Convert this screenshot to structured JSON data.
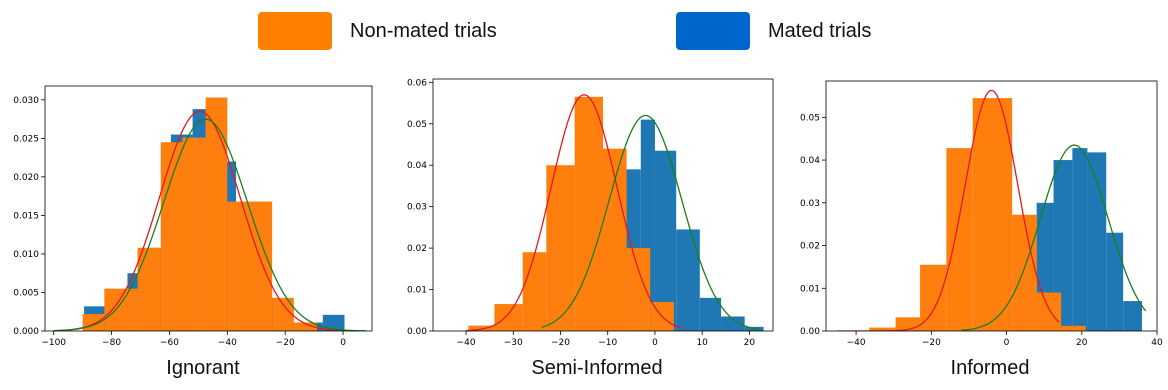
{
  "legend": {
    "nonmated_label": "Non-mated trials",
    "mated_label": "Mated trials",
    "nonmated_color": "#ff7f0e",
    "mated_color": "#1f77b4",
    "nonmated_swatch_color": "#ff8000",
    "mated_swatch_color": "#0066cc"
  },
  "fit_colors": {
    "nonmated": "#e31a1c",
    "mated": "#1a7f1a"
  },
  "chart_data": [
    {
      "type": "bar",
      "title": "Ignorant",
      "xlim": [
        -103,
        10
      ],
      "ylim": [
        0,
        0.0318
      ],
      "xticks": [
        -100,
        -80,
        -60,
        -40,
        -20,
        0
      ],
      "yticks": [
        0.0,
        0.005,
        0.01,
        0.015,
        0.02,
        0.025,
        0.03
      ],
      "ytick_labels": [
        "0.000",
        "0.005",
        "0.010",
        "0.015",
        "0.020",
        "0.025",
        "0.030"
      ],
      "series": [
        {
          "name": "Mated trials",
          "bins": [
            {
              "x0": -89.5,
              "x1": -82.0,
              "y": 0.0032
            },
            {
              "x0": -82.0,
              "x1": -74.5,
              "y": 0.0054
            },
            {
              "x0": -74.5,
              "x1": -67.0,
              "y": 0.0075
            },
            {
              "x0": -67.0,
              "x1": -59.5,
              "y": 0.0108
            },
            {
              "x0": -59.5,
              "x1": -52.0,
              "y": 0.0255
            },
            {
              "x0": -52.0,
              "x1": -44.5,
              "y": 0.0288
            },
            {
              "x0": -44.5,
              "x1": -37.0,
              "y": 0.022
            },
            {
              "x0": -37.0,
              "x1": -29.5,
              "y": 0.0138
            },
            {
              "x0": -29.5,
              "x1": -22.0,
              "y": 0.0043
            },
            {
              "x0": -22.0,
              "x1": -14.5,
              "y": 0.0011
            },
            {
              "x0": -14.5,
              "x1": -7.0,
              "y": 0.0011
            },
            {
              "x0": -7.0,
              "x1": 0.5,
              "y": 0.0021
            }
          ]
        },
        {
          "name": "Non-mated trials",
          "bins": [
            {
              "x0": -90.0,
              "x1": -82.5,
              "y": 0.0022
            },
            {
              "x0": -82.5,
              "x1": -71.0,
              "y": 0.0055
            },
            {
              "x0": -71.0,
              "x1": -63.0,
              "y": 0.0108
            },
            {
              "x0": -63.0,
              "x1": -55.5,
              "y": 0.0245
            },
            {
              "x0": -55.5,
              "x1": -47.5,
              "y": 0.0251
            },
            {
              "x0": -47.5,
              "x1": -40.0,
              "y": 0.0303
            },
            {
              "x0": -40.0,
              "x1": -32.5,
              "y": 0.0168
            },
            {
              "x0": -32.5,
              "x1": -24.5,
              "y": 0.0168
            },
            {
              "x0": -24.5,
              "x1": -17.0,
              "y": 0.0043
            },
            {
              "x0": -17.0,
              "x1": -9.0,
              "y": 0.0011
            }
          ]
        }
      ],
      "fits": [
        {
          "series": "Non-mated trials",
          "mean": -49.5,
          "sd": 14.0,
          "peak": 0.0285,
          "x0": -100,
          "x1": 0
        },
        {
          "series": "Mated trials",
          "mean": -47.5,
          "sd": 14.5,
          "peak": 0.0275,
          "x0": -100,
          "x1": 8
        }
      ]
    },
    {
      "type": "bar",
      "title": "Semi-Informed",
      "xlim": [
        -47,
        25
      ],
      "ylim": [
        0,
        0.0608
      ],
      "xticks": [
        -40,
        -30,
        -20,
        -10,
        0,
        10,
        20
      ],
      "yticks": [
        0.0,
        0.01,
        0.02,
        0.03,
        0.04,
        0.05,
        0.06
      ],
      "ytick_labels": [
        "0.00",
        "0.01",
        "0.02",
        "0.03",
        "0.04",
        "0.05",
        "0.06"
      ],
      "series": [
        {
          "name": "Mated trials",
          "bins": [
            {
              "x0": -8.0,
              "x1": -3.0,
              "y": 0.039
            },
            {
              "x0": -3.0,
              "x1": 0.0,
              "y": 0.051
            },
            {
              "x0": 0.0,
              "x1": 4.5,
              "y": 0.0435
            },
            {
              "x0": 4.5,
              "x1": 9.5,
              "y": 0.0245
            },
            {
              "x0": 9.5,
              "x1": 14.0,
              "y": 0.008
            },
            {
              "x0": 14.0,
              "x1": 19.0,
              "y": 0.0035
            },
            {
              "x0": 19.0,
              "x1": 23.0,
              "y": 0.001
            }
          ]
        },
        {
          "name": "Non-mated trials",
          "bins": [
            {
              "x0": -39.5,
              "x1": -34.0,
              "y": 0.0013
            },
            {
              "x0": -34.0,
              "x1": -28.0,
              "y": 0.0065
            },
            {
              "x0": -28.0,
              "x1": -23.0,
              "y": 0.019
            },
            {
              "x0": -23.0,
              "x1": -17.0,
              "y": 0.04
            },
            {
              "x0": -17.0,
              "x1": -11.0,
              "y": 0.0565
            },
            {
              "x0": -11.0,
              "x1": -6.0,
              "y": 0.044
            },
            {
              "x0": -6.0,
              "x1": -1.0,
              "y": 0.02
            },
            {
              "x0": -1.0,
              "x1": 4.0,
              "y": 0.007
            }
          ]
        }
      ],
      "fits": [
        {
          "series": "Non-mated trials",
          "mean": -15.0,
          "sd": 7.0,
          "peak": 0.057,
          "x0": -40,
          "x1": 6
        },
        {
          "series": "Mated trials",
          "mean": -2.0,
          "sd": 7.7,
          "peak": 0.052,
          "x0": -24,
          "x1": 22
        }
      ]
    },
    {
      "type": "bar",
      "title": "Informed",
      "xlim": [
        -48,
        40
      ],
      "ylim": [
        0,
        0.0585
      ],
      "xticks": [
        -40,
        -20,
        0,
        20,
        40
      ],
      "yticks": [
        0.0,
        0.01,
        0.02,
        0.03,
        0.04,
        0.05
      ],
      "ytick_labels": [
        "0.00",
        "0.01",
        "0.02",
        "0.03",
        "0.04",
        "0.05"
      ],
      "series": [
        {
          "name": "Mated trials",
          "bins": [
            {
              "x0": 8.0,
              "x1": 12.5,
              "y": 0.03
            },
            {
              "x0": 12.5,
              "x1": 17.5,
              "y": 0.04
            },
            {
              "x0": 17.5,
              "x1": 21.5,
              "y": 0.0428
            },
            {
              "x0": 21.5,
              "x1": 26.5,
              "y": 0.0418
            },
            {
              "x0": 26.5,
              "x1": 31.0,
              "y": 0.023
            },
            {
              "x0": 31.0,
              "x1": 36.0,
              "y": 0.007
            }
          ]
        },
        {
          "name": "Non-mated trials",
          "bins": [
            {
              "x0": -36.5,
              "x1": -29.5,
              "y": 0.0008
            },
            {
              "x0": -29.5,
              "x1": -23.0,
              "y": 0.0032
            },
            {
              "x0": -23.0,
              "x1": -16.0,
              "y": 0.0155
            },
            {
              "x0": -16.0,
              "x1": -9.0,
              "y": 0.0428
            },
            {
              "x0": -9.0,
              "x1": 1.5,
              "y": 0.0545
            },
            {
              "x0": 1.5,
              "x1": 8.0,
              "y": 0.0272
            },
            {
              "x0": 8.0,
              "x1": 14.5,
              "y": 0.009
            },
            {
              "x0": 14.5,
              "x1": 21.0,
              "y": 0.0012
            }
          ]
        }
      ],
      "fits": [
        {
          "series": "Non-mated trials",
          "mean": -4.0,
          "sd": 7.0,
          "peak": 0.0563,
          "x0": -45,
          "x1": 14
        },
        {
          "series": "Mated trials",
          "mean": 18.0,
          "sd": 9.0,
          "peak": 0.0435,
          "x0": -12,
          "x1": 37
        }
      ]
    }
  ]
}
